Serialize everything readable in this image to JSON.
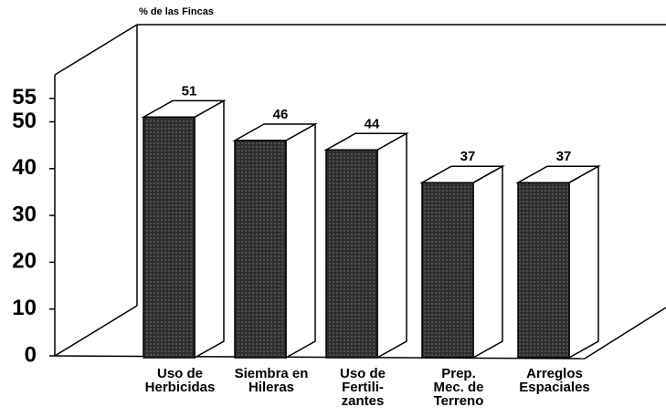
{
  "chart_data": {
    "type": "bar3d",
    "axis_label": "% de las Fincas",
    "categories": [
      "Uso de\nHerbicidas",
      "Siembra en\nHileras",
      "Uso de\nFertili-\nzantes",
      "Prep.\nMec. de\nTerreno",
      "Arreglos\nEspaciales"
    ],
    "values": [
      51,
      46,
      44,
      37,
      37
    ],
    "color": "#2e2e2e",
    "ylim": [
      0,
      60
    ],
    "yticks": [
      0,
      10,
      20,
      30,
      40,
      50,
      55
    ]
  }
}
